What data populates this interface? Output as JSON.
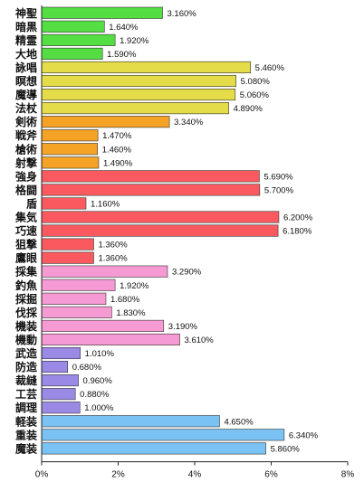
{
  "chart_data": {
    "type": "bar",
    "orientation": "horizontal",
    "title": "",
    "xlabel": "",
    "ylabel": "",
    "xlim": [
      0,
      8
    ],
    "x_ticks": [
      "0%",
      "2%",
      "4%",
      "6%",
      "8%"
    ],
    "grid": false,
    "categories": [
      "神聖",
      "暗黒",
      "精霊",
      "大地",
      "詠唱",
      "瞑想",
      "魔導",
      "法杖",
      "剣術",
      "戦斧",
      "槍術",
      "射撃",
      "強身",
      "格闘",
      "盾",
      "集気",
      "巧速",
      "狙撃",
      "鷹眼",
      "採集",
      "釣魚",
      "採掘",
      "伐採",
      "機装",
      "機動",
      "武造",
      "防造",
      "裁縫",
      "工芸",
      "調理",
      "軽装",
      "重装",
      "魔装"
    ],
    "values": [
      3.16,
      1.64,
      1.92,
      1.59,
      5.46,
      5.08,
      5.06,
      4.89,
      3.34,
      1.47,
      1.46,
      1.49,
      5.69,
      5.7,
      1.16,
      6.2,
      6.18,
      1.36,
      1.36,
      3.29,
      1.92,
      1.68,
      1.83,
      3.19,
      3.61,
      1.01,
      0.68,
      0.96,
      0.88,
      1.0,
      4.65,
      6.34,
      5.86
    ],
    "value_labels": [
      "3.160%",
      "1.640%",
      "1.920%",
      "1.590%",
      "5.460%",
      "5.080%",
      "5.060%",
      "4.890%",
      "3.340%",
      "1.470%",
      "1.460%",
      "1.490%",
      "5.690%",
      "5.700%",
      "1.160%",
      "6.200%",
      "6.180%",
      "1.360%",
      "1.360%",
      "3.290%",
      "1.920%",
      "1.680%",
      "1.830%",
      "3.190%",
      "3.610%",
      "1.010%",
      "0.680%",
      "0.960%",
      "0.880%",
      "1.000%",
      "4.650%",
      "6.340%",
      "5.860%"
    ],
    "colors": [
      "#55dd44",
      "#55dd44",
      "#55dd44",
      "#55dd44",
      "#e4dc48",
      "#e4dc48",
      "#e4dc48",
      "#e4dc48",
      "#f4a326",
      "#f4a326",
      "#f4a326",
      "#f4a326",
      "#fa5a5f",
      "#fa5a5f",
      "#fa5a5f",
      "#fa5a5f",
      "#fa5a5f",
      "#fa5a5f",
      "#fa5a5f",
      "#f59ad2",
      "#f59ad2",
      "#f59ad2",
      "#f59ad2",
      "#f59ad2",
      "#f59ad2",
      "#9a8ae6",
      "#9a8ae6",
      "#9a8ae6",
      "#9a8ae6",
      "#9a8ae6",
      "#7ac2f4",
      "#7ac2f4",
      "#7ac2f4"
    ]
  }
}
